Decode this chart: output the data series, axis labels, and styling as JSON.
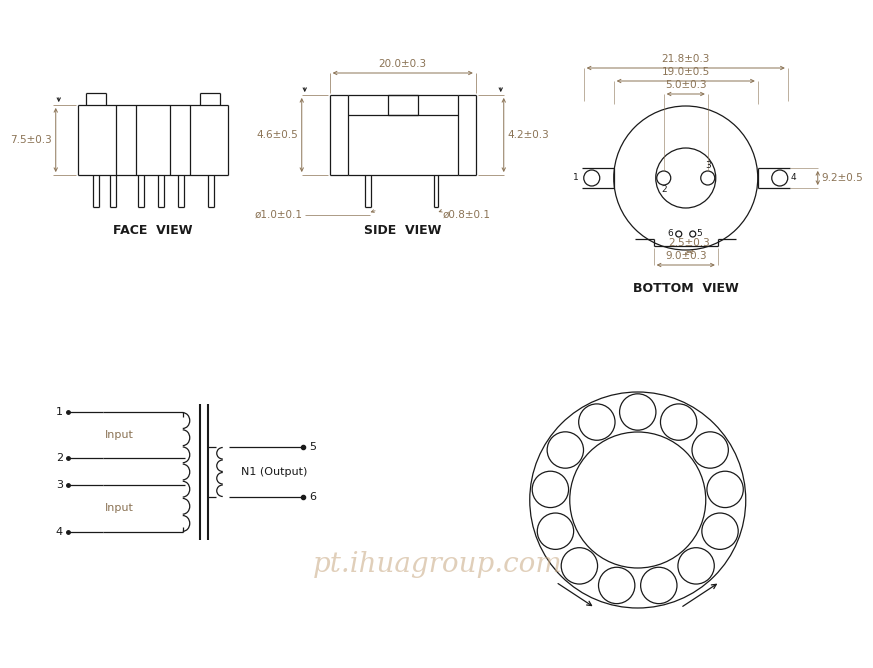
{
  "bg_color": "#ffffff",
  "line_color": "#1a1a1a",
  "dim_color": "#8B7355",
  "text_color": "#1a1a1a",
  "watermark_color": "#C8A882",
  "watermark_text": "pt.ihuagroup.com",
  "face_view_label": "FACE  VIEW",
  "side_view_label": "SIDE  VIEW",
  "bottom_view_label": "BOTTOM  VIEW",
  "dims": {
    "face_height": "7.5±0.3",
    "side_width": "20.0±0.3",
    "side_left_h": "4.6±0.5",
    "side_right_h": "4.2±0.3",
    "side_pin_left": "ø1.0±0.1",
    "side_pin_right": "ø0.8±0.1",
    "bottom_outer": "21.8±0.3",
    "bottom_mid": "19.0±0.5",
    "bottom_top": "5.0±0.3",
    "bottom_right_h": "9.2±0.5",
    "bottom_small": "2.5±0.3",
    "bottom_bot": "9.0±0.3"
  },
  "input_label": "Input",
  "output_label": "N1 (Output)"
}
